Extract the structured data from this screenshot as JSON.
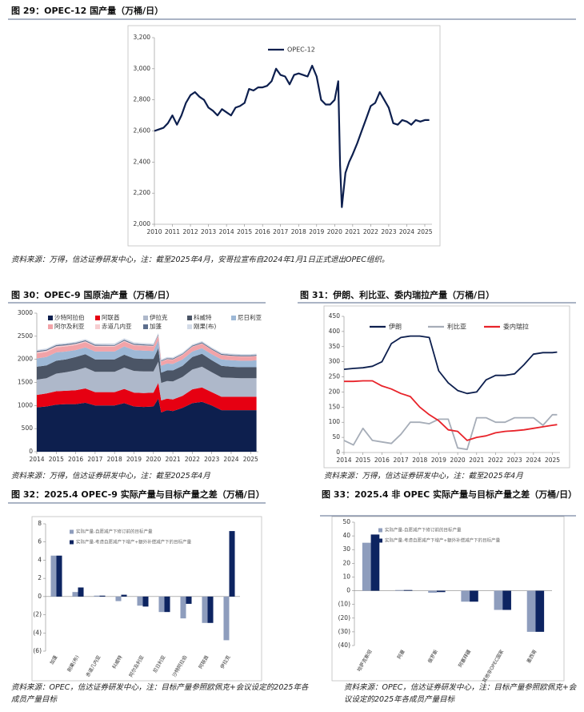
{
  "figures": [
    {
      "caption": "图 29：OPEC-12 国产量（万桶/日）",
      "source": "资料来源：万得，信达证券研发中心，注：截至2025年4月，安哥拉宣布自2024年1月1日正式退出OPEC组织。"
    },
    {
      "caption": "图 30：OPEC-9 国原油产量（万桶/日）",
      "source": "资料来源：万得，信达证券研发中心，注：截至2025年4月"
    },
    {
      "caption": "图 31：伊朗、利比亚、委内瑞拉产量（万桶/日）",
      "source": "资料来源：万得，信达证券研发中心，注：截至2025年4月"
    },
    {
      "caption": "图 32：2025.4 OPEC-9 实际产量与目标产量之差（万桶/日）",
      "source": "资料来源：OPEC，信达证券研发中心，注：目标产量参照欧佩克+会议设定的2025年各成员产量目标"
    },
    {
      "caption": "图 33：2025.4 非 OPEC 实际产量与目标产量之差（万桶/日）",
      "source": "资料来源：OPEC，信达证券研发中心，注：目标产量参照欧佩克+会议设定的2025年各成员产量目标"
    }
  ],
  "chart_data": [
    {
      "type": "line",
      "x": [
        2010,
        2010.25,
        2010.5,
        2010.75,
        2011,
        2011.25,
        2011.5,
        2011.75,
        2012,
        2012.25,
        2012.5,
        2012.75,
        2013,
        2013.25,
        2013.5,
        2013.75,
        2014,
        2014.25,
        2014.5,
        2014.75,
        2015,
        2015.25,
        2015.5,
        2015.75,
        2016,
        2016.25,
        2016.5,
        2016.75,
        2017,
        2017.25,
        2017.5,
        2017.75,
        2018,
        2018.25,
        2018.5,
        2018.75,
        2019,
        2019.25,
        2019.5,
        2019.75,
        2020,
        2020.2,
        2020.3,
        2020.4,
        2020.6,
        2020.8,
        2021,
        2021.25,
        2021.5,
        2021.75,
        2022,
        2022.25,
        2022.5,
        2022.75,
        2023,
        2023.25,
        2023.5,
        2023.75,
        2024,
        2024.25,
        2024.5,
        2024.75,
        2025,
        2025.25
      ],
      "series": [
        {
          "name": "OPEC-12",
          "color": "#0d1f4e",
          "values": [
            2600,
            2610,
            2620,
            2650,
            2700,
            2640,
            2700,
            2780,
            2830,
            2850,
            2820,
            2800,
            2750,
            2730,
            2700,
            2740,
            2720,
            2700,
            2750,
            2760,
            2780,
            2870,
            2860,
            2880,
            2880,
            2890,
            2920,
            3000,
            2960,
            2950,
            2900,
            2960,
            2970,
            2960,
            2950,
            3020,
            2950,
            2800,
            2770,
            2770,
            2800,
            2920,
            2380,
            2110,
            2330,
            2400,
            2450,
            2520,
            2600,
            2680,
            2760,
            2780,
            2850,
            2800,
            2750,
            2650,
            2640,
            2670,
            2660,
            2640,
            2670,
            2660,
            2670,
            2670
          ]
        }
      ],
      "xlim": [
        2010,
        2025.4
      ],
      "xticks": [
        2010,
        2011,
        2012,
        2013,
        2014,
        2015,
        2016,
        2017,
        2018,
        2019,
        2020,
        2021,
        2022,
        2023,
        2024,
        2025
      ],
      "ylim": [
        2000,
        3200
      ],
      "yticks": [
        {
          "value": 2000,
          "label": "2,000"
        },
        {
          "value": 2200,
          "label": "2,200"
        },
        {
          "value": 2400,
          "label": "2,400"
        },
        {
          "value": 2600,
          "label": "2,600"
        },
        {
          "value": 2800,
          "label": "2,800"
        },
        {
          "value": 3000,
          "label": "3,000"
        },
        {
          "value": 3200,
          "label": "3,200"
        }
      ],
      "legend": "top"
    },
    {
      "type": "stacked_area",
      "x": [
        2014,
        2014.5,
        2015,
        2015.5,
        2016,
        2016.5,
        2017,
        2017.5,
        2018,
        2018.5,
        2019,
        2019.5,
        2020,
        2020.25,
        2020.4,
        2020.7,
        2021,
        2021.5,
        2022,
        2022.5,
        2023,
        2023.5,
        2024,
        2024.5,
        2025,
        2025.3
      ],
      "series": [
        {
          "name": "沙特阿拉伯",
          "color": "#0d1f4e",
          "values": [
            960,
            980,
            1020,
            1030,
            1030,
            1060,
            1000,
            1000,
            1000,
            1050,
            980,
            970,
            980,
            1150,
            850,
            900,
            880,
            950,
            1050,
            1080,
            1000,
            900,
            900,
            900,
            900,
            900
          ]
        },
        {
          "name": "阿联酋",
          "color": "#e60012",
          "values": [
            270,
            280,
            290,
            290,
            300,
            310,
            290,
            290,
            290,
            310,
            300,
            300,
            300,
            340,
            260,
            250,
            250,
            260,
            300,
            310,
            290,
            290,
            290,
            290,
            290,
            290
          ]
        },
        {
          "name": "伊拉克",
          "color": "#aeb8ca",
          "values": [
            330,
            330,
            380,
            400,
            430,
            450,
            440,
            440,
            440,
            460,
            470,
            470,
            460,
            460,
            380,
            380,
            390,
            410,
            430,
            450,
            430,
            420,
            410,
            400,
            400,
            400
          ]
        },
        {
          "name": "科威特",
          "color": "#4b5566",
          "values": [
            280,
            280,
            280,
            280,
            290,
            290,
            270,
            270,
            270,
            280,
            270,
            270,
            270,
            290,
            220,
            230,
            240,
            240,
            270,
            280,
            260,
            250,
            240,
            240,
            240,
            240
          ]
        },
        {
          "name": "尼日利亚",
          "color": "#9db8d6",
          "values": [
            180,
            180,
            180,
            170,
            150,
            150,
            170,
            170,
            170,
            180,
            180,
            180,
            170,
            170,
            150,
            150,
            140,
            140,
            120,
            120,
            130,
            140,
            140,
            140,
            140,
            150
          ]
        },
        {
          "name": "阿尔及利亚",
          "color": "#f2a3a8",
          "values": [
            110,
            110,
            110,
            110,
            110,
            110,
            105,
            105,
            105,
            105,
            100,
            100,
            100,
            100,
            85,
            85,
            90,
            95,
            100,
            100,
            95,
            90,
            90,
            90,
            90,
            90
          ]
        },
        {
          "name": "赤道几内亚",
          "color": "#f7cdd0",
          "values": [
            27,
            27,
            26,
            25,
            24,
            22,
            20,
            18,
            17,
            16,
            15,
            12,
            12,
            12,
            11,
            11,
            10,
            10,
            9,
            8,
            6,
            6,
            6,
            6,
            6,
            6
          ]
        },
        {
          "name": "加蓬",
          "color": "#5d6f8d",
          "values": [
            22,
            22,
            22,
            22,
            22,
            20,
            20,
            20,
            20,
            21,
            21,
            21,
            20,
            20,
            18,
            18,
            18,
            18,
            19,
            20,
            20,
            21,
            22,
            22,
            22,
            22
          ]
        },
        {
          "name": "刚果(布)",
          "color": "#d3dbe8",
          "values": [
            26,
            26,
            26,
            26,
            27,
            27,
            30,
            32,
            32,
            33,
            33,
            32,
            30,
            30,
            28,
            27,
            27,
            27,
            26,
            26,
            26,
            26,
            26,
            26,
            26,
            26
          ]
        }
      ],
      "xlim": [
        2014,
        2025.4
      ],
      "xticks": [
        2014,
        2015,
        2016,
        2017,
        2018,
        2019,
        2020,
        2021,
        2022,
        2023,
        2024,
        2025
      ],
      "ylim": [
        0,
        3000
      ],
      "yticks": [
        0,
        500,
        1000,
        1500,
        2000,
        2500,
        3000
      ],
      "legend": "top-left"
    },
    {
      "type": "line",
      "x": [
        2014,
        2014.5,
        2015,
        2015.5,
        2016,
        2016.5,
        2017,
        2017.5,
        2018,
        2018.5,
        2019,
        2019.5,
        2020,
        2020.5,
        2021,
        2021.5,
        2022,
        2022.5,
        2023,
        2023.5,
        2024,
        2024.5,
        2025,
        2025.25
      ],
      "series": [
        {
          "name": "伊朗",
          "color": "#0d1f4e",
          "values": [
            275,
            278,
            280,
            285,
            300,
            360,
            380,
            385,
            385,
            380,
            270,
            230,
            205,
            195,
            200,
            240,
            255,
            255,
            260,
            290,
            325,
            330,
            330,
            332
          ]
        },
        {
          "name": "利比亚",
          "color": "#a6adb8",
          "values": [
            40,
            25,
            80,
            40,
            35,
            30,
            60,
            100,
            100,
            95,
            110,
            110,
            15,
            10,
            115,
            115,
            100,
            100,
            115,
            115,
            115,
            90,
            125,
            125
          ]
        },
        {
          "name": "委内瑞拉",
          "color": "#e8232a",
          "values": [
            235,
            235,
            237,
            237,
            220,
            210,
            195,
            185,
            150,
            125,
            105,
            75,
            70,
            40,
            50,
            55,
            65,
            70,
            72,
            75,
            80,
            85,
            90,
            92
          ]
        }
      ],
      "xlim": [
        2014,
        2025.4
      ],
      "xticks": [
        2014,
        2015,
        2016,
        2017,
        2018,
        2019,
        2020,
        2021,
        2022,
        2023,
        2024,
        2025
      ],
      "ylim": [
        0,
        450
      ],
      "yticks": [
        0,
        50,
        100,
        150,
        200,
        250,
        300,
        350,
        400,
        450
      ],
      "legend": "top"
    },
    {
      "type": "bar",
      "categories": [
        "加蓬",
        "刚果(布)",
        "赤道几内亚",
        "科威特",
        "阿尔及利亚",
        "尼日利亚",
        "沙特阿拉伯",
        "阿联酋",
        "伊拉克"
      ],
      "series": [
        {
          "name": "实际产量-自愿减产下修订前的目标产量",
          "color": "#8e9dbd",
          "values": [
            4.5,
            0.5,
            0.1,
            -0.5,
            -1.0,
            -1.7,
            -2.4,
            -2.9,
            -4.8
          ]
        },
        {
          "name": "实际产量-考虑自愿减产下增产+额外补偿减产下的目标产量",
          "color": "#0d2461",
          "values": [
            4.5,
            1.0,
            0.1,
            0.2,
            -1.1,
            -1.7,
            -0.8,
            -2.9,
            7.2
          ]
        }
      ],
      "ylim": [
        -6,
        8
      ],
      "yticks": [
        {
          "value": -6,
          "label": "(6)"
        },
        {
          "value": -4,
          "label": "(4)"
        },
        {
          "value": -2,
          "label": "(2)"
        },
        0,
        2,
        4,
        6,
        8
      ],
      "legend": "top-left"
    },
    {
      "type": "bar",
      "categories": [
        "哈萨克斯坦",
        "阿曼",
        "俄罗斯",
        "阿塞拜疆",
        "其他非OPEC国家",
        "墨西哥"
      ],
      "series": [
        {
          "name": "实际产量-自愿减产下修订前的目标产量",
          "color": "#8e9dbd",
          "values": [
            35,
            0.5,
            -1.5,
            -8,
            -14,
            -30
          ]
        },
        {
          "name": "实际产量-考虑自愿减产下增产+额外补偿减产下的目标产量",
          "color": "#0d2461",
          "values": [
            41,
            0.5,
            -1,
            -8,
            -14,
            -30
          ]
        }
      ],
      "ylim": [
        -40,
        50
      ],
      "yticks": [
        {
          "value": -40,
          "label": "(40)"
        },
        {
          "value": -30,
          "label": "(30)"
        },
        {
          "value": -20,
          "label": "(20)"
        },
        {
          "value": -10,
          "label": "(10)"
        },
        0,
        10,
        20,
        30,
        40,
        50
      ],
      "legend": "top-left"
    }
  ]
}
